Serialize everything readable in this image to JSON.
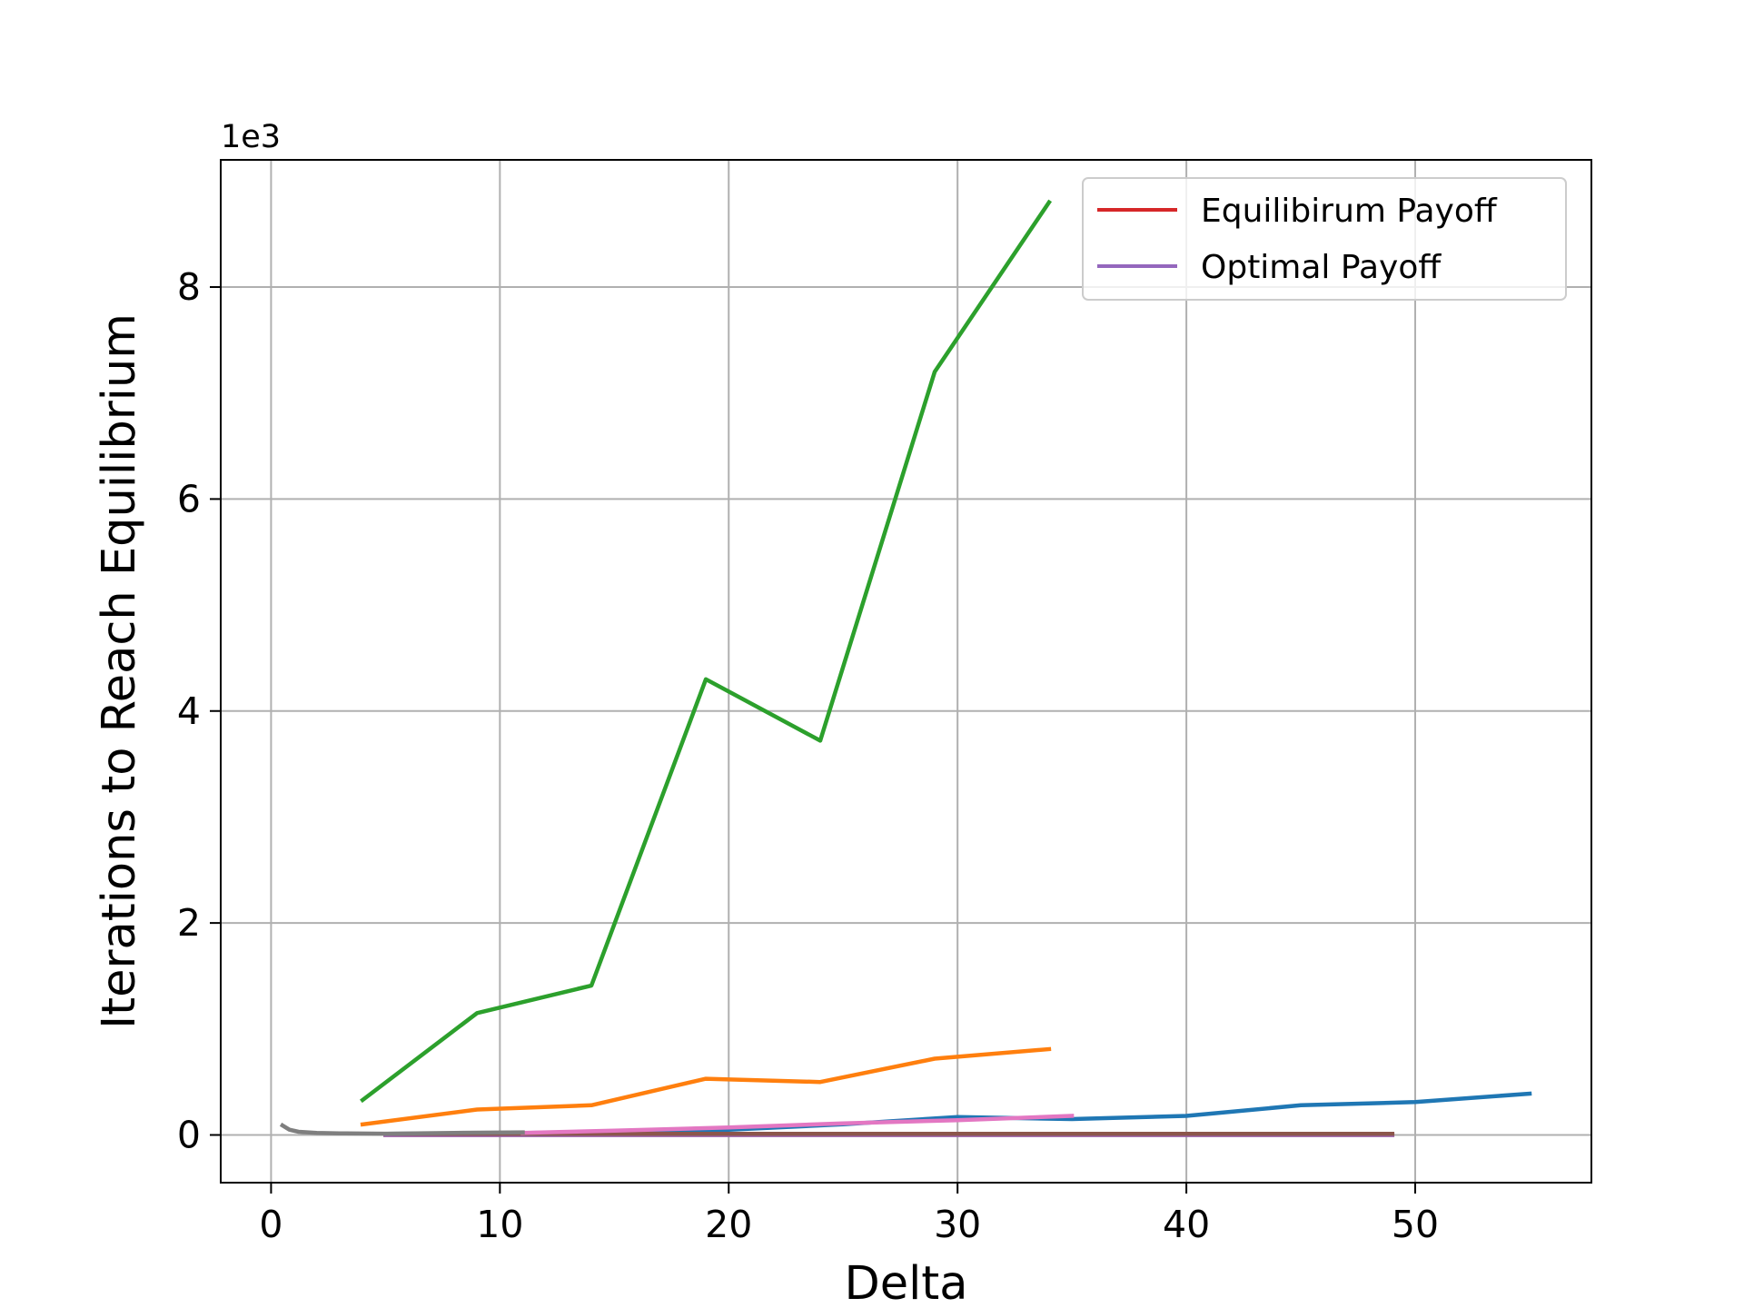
{
  "chart_data": {
    "type": "line",
    "title": "",
    "xlabel": "Delta",
    "ylabel": "Iterations to Reach Equilibrium",
    "y_offset_label": "1e3",
    "xlim": [
      -2.2,
      57.7
    ],
    "ylim": [
      -0.45,
      9.2
    ],
    "x_ticks": [
      0,
      10,
      20,
      30,
      40,
      50
    ],
    "x_tick_labels": [
      "0",
      "10",
      "20",
      "30",
      "40",
      "50"
    ],
    "y_ticks": [
      0,
      2,
      4,
      6,
      8
    ],
    "y_tick_labels": [
      "0",
      "2",
      "4",
      "6",
      "8"
    ],
    "grid": true,
    "legend_position": "top-right",
    "legend": [
      {
        "label": "Equilibirum Payoff",
        "color": "#d62728"
      },
      {
        "label": "Optimal Payoff",
        "color": "#9467bd"
      }
    ],
    "series": [
      {
        "color": "#1f77b4",
        "x": [
          5,
          10,
          15,
          20,
          25,
          30,
          35,
          40,
          45,
          50,
          55
        ],
        "y": [
          0.01,
          0.015,
          0.03,
          0.05,
          0.1,
          0.17,
          0.15,
          0.18,
          0.28,
          0.31,
          0.39
        ]
      },
      {
        "color": "#ff7f0e",
        "x": [
          4,
          9,
          14,
          19,
          24,
          29,
          34
        ],
        "y": [
          0.1,
          0.24,
          0.28,
          0.53,
          0.5,
          0.72,
          0.81
        ]
      },
      {
        "color": "#2ca02c",
        "x": [
          4,
          9,
          14,
          19,
          24,
          29,
          34
        ],
        "y": [
          0.33,
          1.15,
          1.41,
          4.3,
          3.72,
          7.2,
          8.8
        ]
      },
      {
        "color": "#d62728",
        "x": [
          5,
          10,
          15,
          20,
          25,
          30,
          35,
          40,
          45,
          49
        ],
        "y": [
          0.0,
          0.0,
          0.0,
          0.0,
          0.0,
          0.0,
          0.0,
          0.0,
          0.0,
          0.0
        ]
      },
      {
        "color": "#9467bd",
        "x": [
          5,
          10,
          15,
          20,
          25,
          30,
          35,
          40,
          45,
          49
        ],
        "y": [
          0.0,
          0.0,
          0.0,
          0.0,
          0.0,
          0.0,
          0.0,
          0.0,
          0.0,
          0.0
        ]
      },
      {
        "color": "#8c564b",
        "x": [
          5,
          10,
          15,
          20,
          25,
          30,
          35,
          40,
          45,
          49
        ],
        "y": [
          0.01,
          0.01,
          0.01,
          0.01,
          0.01,
          0.01,
          0.01,
          0.01,
          0.01,
          0.01
        ]
      },
      {
        "color": "#e377c2",
        "x": [
          11,
          15,
          20,
          25,
          30,
          35
        ],
        "y": [
          0.02,
          0.04,
          0.07,
          0.11,
          0.14,
          0.18
        ]
      },
      {
        "color": "#7f7f7f",
        "x": [
          0.5,
          0.8,
          1.2,
          2,
          3,
          5,
          8,
          11
        ],
        "y": [
          0.09,
          0.05,
          0.03,
          0.02,
          0.015,
          0.012,
          0.02,
          0.025
        ]
      }
    ]
  }
}
